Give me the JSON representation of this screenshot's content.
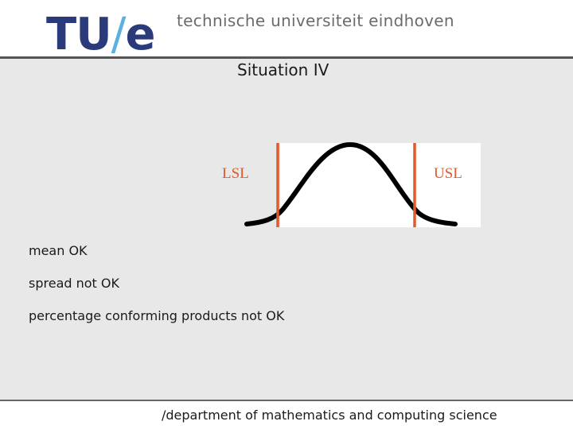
{
  "header": {
    "logo_text": "TU",
    "logo_slash": "/",
    "logo_e": "e",
    "university": "technische universiteit eindhoven"
  },
  "slide": {
    "title": "Situation IV",
    "bullets": [
      "mean OK",
      "spread not OK",
      "percentage conforming products not OK"
    ]
  },
  "chart_data": {
    "type": "line",
    "title": "",
    "xlabel": "",
    "ylabel": "",
    "annotations": [
      "LSL",
      "USL"
    ],
    "limit_color": "#e05a2b",
    "curve_color": "#000000"
  },
  "footer": {
    "text": "/department of mathematics and computing science"
  },
  "colors": {
    "brand_blue": "#2b3a7a",
    "brand_light_blue": "#5ab0e0",
    "background": "#e8e8e8"
  }
}
